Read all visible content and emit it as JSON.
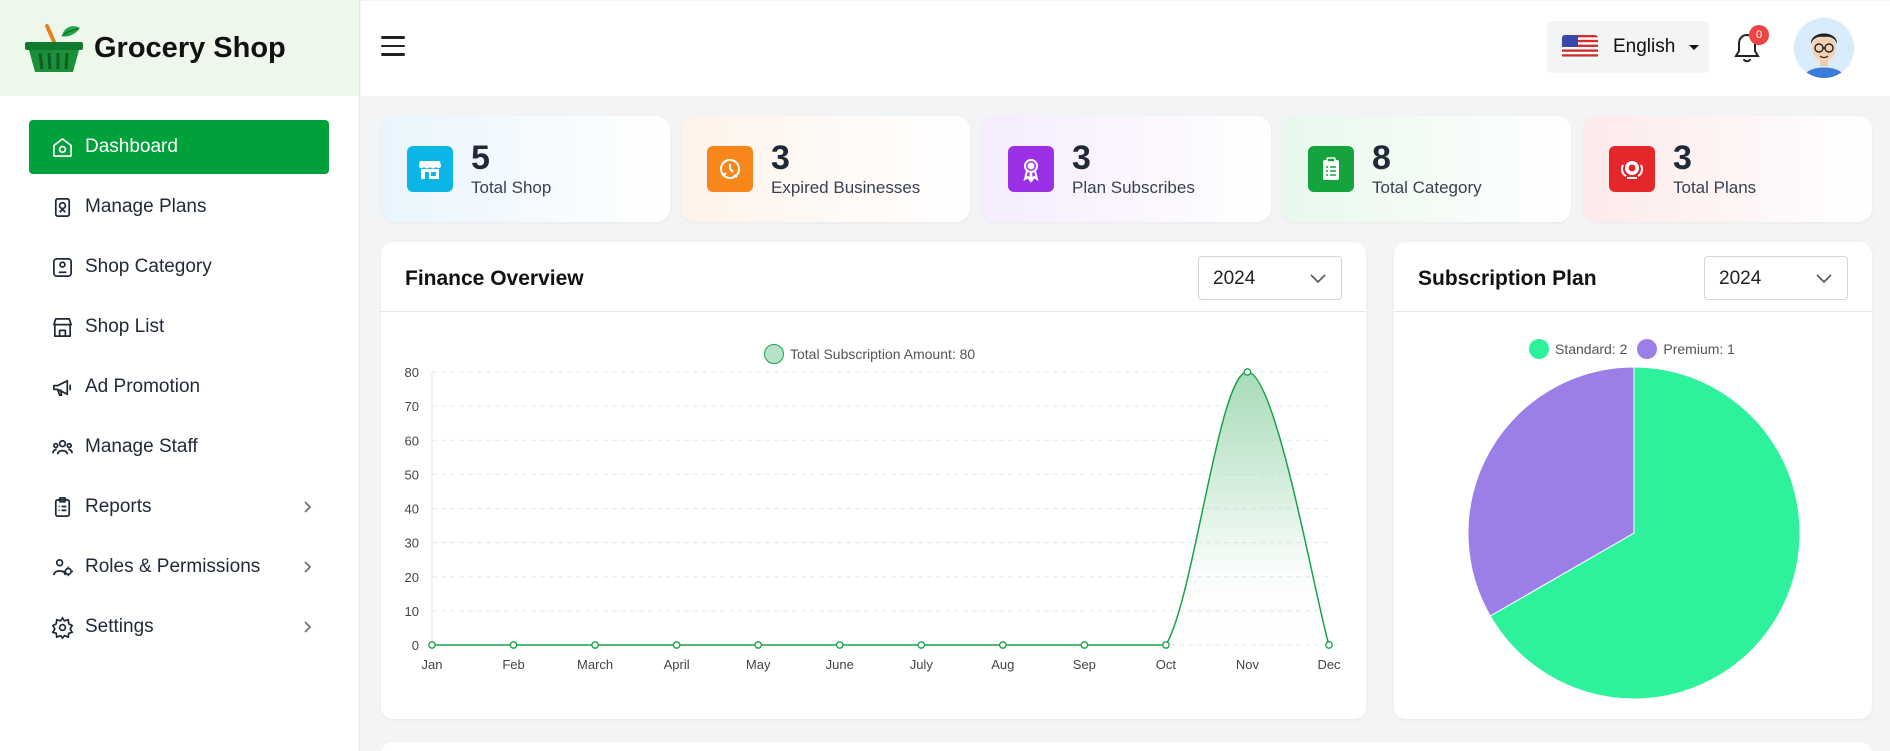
{
  "brand": {
    "name": "Grocery Shop",
    "logo_icon": "basket-icon"
  },
  "sidebar": {
    "items": [
      {
        "label": "Dashboard",
        "icon": "home-icon",
        "active": true
      },
      {
        "label": "Manage Plans",
        "icon": "plans-icon"
      },
      {
        "label": "Shop Category",
        "icon": "category-icon"
      },
      {
        "label": "Shop List",
        "icon": "store-icon"
      },
      {
        "label": "Ad Promotion",
        "icon": "megaphone-icon"
      },
      {
        "label": "Manage Staff",
        "icon": "staff-icon"
      },
      {
        "label": "Reports",
        "icon": "clipboard-icon",
        "has_submenu": true
      },
      {
        "label": "Roles & Permissions",
        "icon": "roles-icon",
        "has_submenu": true
      },
      {
        "label": "Settings",
        "icon": "gear-icon",
        "has_submenu": true
      }
    ]
  },
  "header": {
    "language": "English",
    "notification_count": "0"
  },
  "stats": [
    {
      "value": "5",
      "label": "Total Shop",
      "icon": "store-icon",
      "color": "#0ea5e9"
    },
    {
      "value": "3",
      "label": "Expired Businesses",
      "icon": "expired-icon",
      "color": "#f97316"
    },
    {
      "value": "3",
      "label": "Plan Subscribes",
      "icon": "award-icon",
      "color": "#9333ea"
    },
    {
      "value": "8",
      "label": "Total Category",
      "icon": "clipboard-icon",
      "color": "#16a34a"
    },
    {
      "value": "3",
      "label": "Total Plans",
      "icon": "badge-icon",
      "color": "#dc2626"
    }
  ],
  "finance": {
    "title": "Finance Overview",
    "year": "2024"
  },
  "subscription": {
    "title": "Subscription Plan",
    "year": "2024"
  },
  "chart_data": [
    {
      "type": "line",
      "legend": "Total Subscription Amount: 80",
      "categories": [
        "Jan",
        "Feb",
        "March",
        "April",
        "May",
        "June",
        "July",
        "Aug",
        "Sep",
        "Oct",
        "Nov",
        "Dec"
      ],
      "values": [
        0,
        0,
        0,
        0,
        0,
        0,
        0,
        0,
        0,
        0,
        80,
        0
      ],
      "yticks": [
        0,
        10,
        20,
        30,
        40,
        50,
        60,
        70,
        80
      ],
      "ylim": [
        0,
        80
      ],
      "color": "#16a34a",
      "fill": "#a8dbb8",
      "grid": true
    },
    {
      "type": "pie",
      "labels": [
        "Standard: 2",
        "Premium: 1"
      ],
      "values": [
        2,
        1
      ],
      "colors": [
        "#2ef29b",
        "#9b7ee6"
      ],
      "legend_position": "top"
    }
  ]
}
